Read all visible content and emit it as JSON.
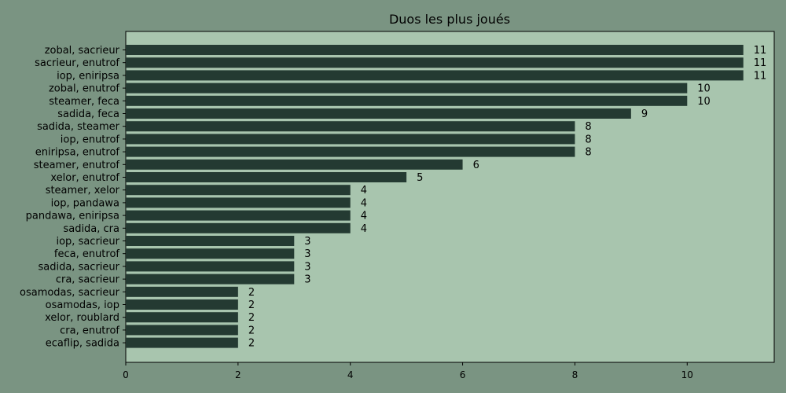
{
  "chart_data": {
    "type": "bar",
    "orientation": "horizontal",
    "title": "Duos les plus joués",
    "xlabel": "",
    "ylabel": "",
    "categories": [
      "zobal, sacrieur",
      "sacrieur, enutrof",
      "iop, eniripsa",
      "zobal, enutrof",
      "steamer, feca",
      "sadida, feca",
      "sadida, steamer",
      "iop, enutrof",
      "eniripsa, enutrof",
      "steamer, enutrof",
      "xelor, enutrof",
      "steamer, xelor",
      "iop, pandawa",
      "pandawa, eniripsa",
      "sadida, cra",
      "iop, sacrieur",
      "feca, enutrof",
      "sadida, sacrieur",
      "cra, sacrieur",
      "osamodas, sacrieur",
      "osamodas, iop",
      "xelor, roublard",
      "cra, enutrof",
      "ecaflip, sadida"
    ],
    "values": [
      11,
      11,
      11,
      10,
      10,
      9,
      8,
      8,
      8,
      6,
      5,
      4,
      4,
      4,
      4,
      3,
      3,
      3,
      3,
      2,
      2,
      2,
      2,
      2
    ],
    "xlim": [
      0,
      11.55
    ],
    "xticks": [
      0,
      2,
      4,
      6,
      8,
      10
    ],
    "grid": false,
    "colors": {
      "figure_bg": "#7a9482",
      "plot_bg": "#a8c5ae",
      "bar": "#243a32",
      "text": "#000000"
    }
  }
}
